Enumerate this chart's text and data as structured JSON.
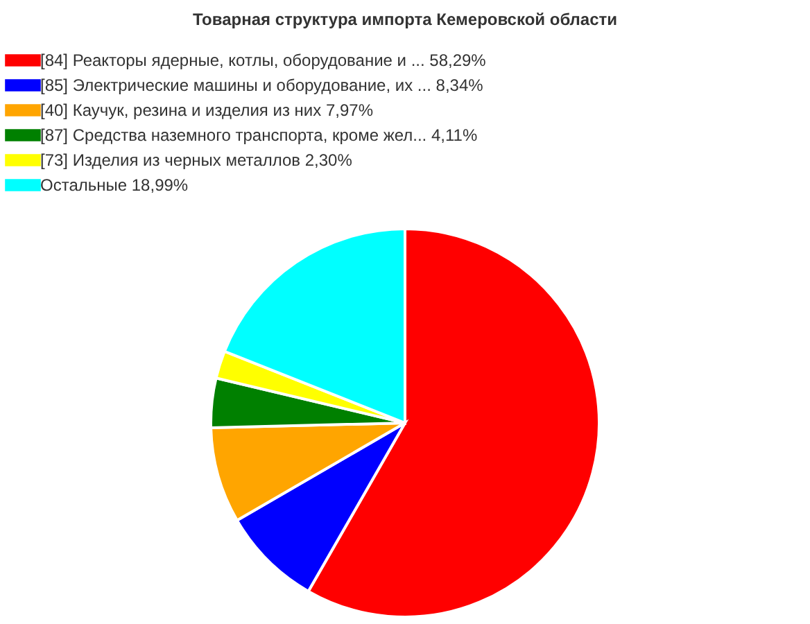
{
  "chart_data": {
    "type": "pie",
    "title": "Товарная структура импорта Кемеровской области",
    "categories": [
      "[84] Реакторы ядерные, котлы, оборудование и ... 58,29%",
      "[85] Электрические машины и оборудование, их ... 8,34%",
      "[40] Каучук, резина и изделия из них 7,97%",
      "[87] Средства наземного транспорта, кроме жел... 4,11%",
      "[73] Изделия из черных металлов 2,30%",
      "Остальные  18,99%"
    ],
    "values": [
      58.29,
      8.34,
      7.97,
      4.11,
      2.3,
      18.99
    ],
    "colors": [
      "#ff0000",
      "#0000ff",
      "#ffa500",
      "#008000",
      "#ffff00",
      "#00ffff"
    ],
    "legend": "top"
  }
}
